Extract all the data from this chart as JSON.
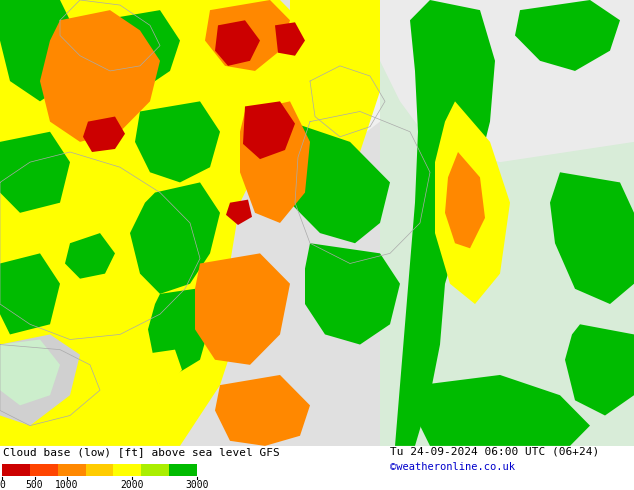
{
  "title_left": "Cloud base (low) [ft] above sea level GFS",
  "title_right": "Tu 24-09-2024 06:00 UTC (06+24)",
  "credit": "©weatheronline.co.uk",
  "bg_color": "#ffffff",
  "map_bg_left": "#e8e8e8",
  "map_bg_right": "#e0ede0",
  "credit_color": "#0000cc",
  "figsize": [
    6.34,
    4.9
  ],
  "dpi": 100,
  "colors": {
    "green_dark": "#00bb00",
    "green_light": "#88dd88",
    "green_pale": "#cceecc",
    "yellow": "#ffff00",
    "orange": "#ff8800",
    "red": "#cc0000",
    "white_sea": "#f2f2f2",
    "gray_land": "#e0e0e0"
  }
}
